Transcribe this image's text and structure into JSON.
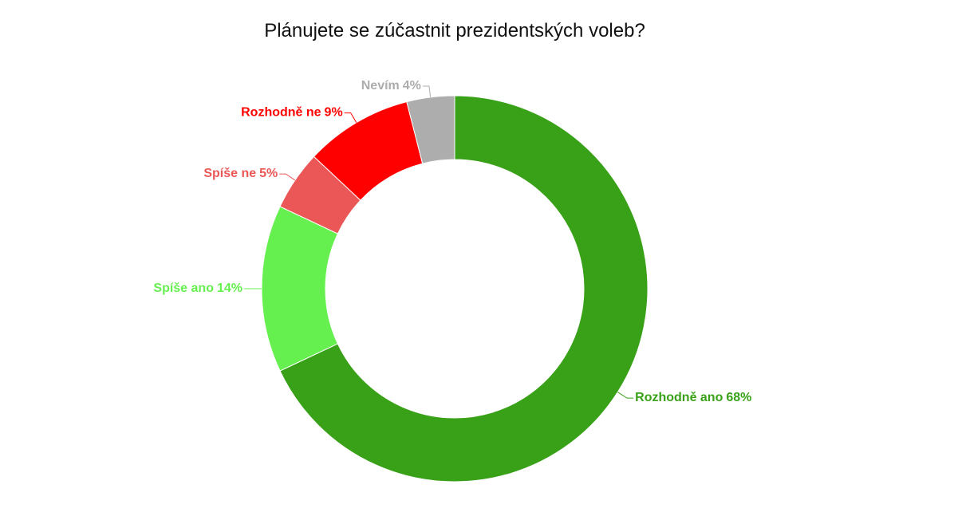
{
  "chart_data": {
    "type": "donut",
    "title": "Plánujete se zúčastnit prezidentských voleb?",
    "categories": [
      "Rozhodně ano",
      "Spíše ano",
      "Spíše ne",
      "Rozhodně ne",
      "Nevím"
    ],
    "values": [
      68,
      14,
      5,
      9,
      4
    ],
    "value_labels": [
      "68%",
      "14%",
      "5%",
      "9%",
      "4%"
    ],
    "colors": [
      "#38a118",
      "#66f04f",
      "#eb5757",
      "#ff0000",
      "#adadad"
    ]
  }
}
